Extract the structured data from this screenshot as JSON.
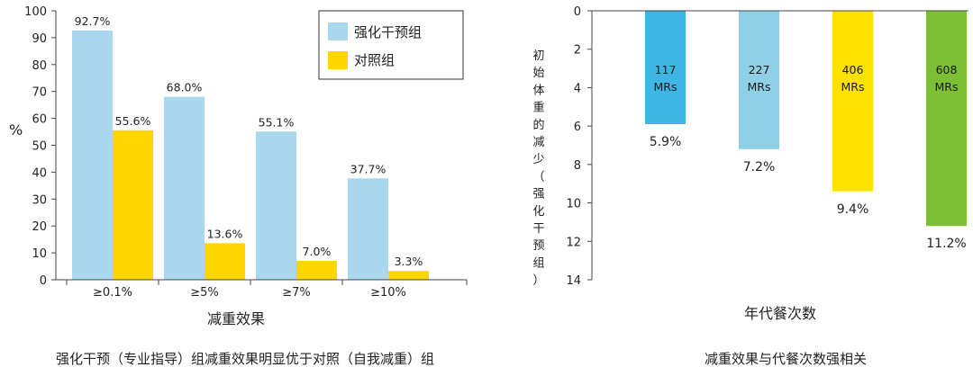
{
  "chart_data": [
    {
      "type": "bar",
      "categories": [
        "≥0.1%",
        "≥5%",
        "≥7%",
        "≥10%"
      ],
      "series": [
        {
          "name": "强化干预组",
          "values": [
            92.7,
            68.0,
            55.1,
            37.7
          ],
          "labels": [
            "92.7%",
            "68.0%",
            "55.1%",
            "37.7%"
          ],
          "color": "#a9d8ee"
        },
        {
          "name": "对照组",
          "values": [
            55.6,
            13.6,
            7.0,
            3.3
          ],
          "labels": [
            "55.6%",
            "13.6%",
            "7.0%",
            "3.3%"
          ],
          "color": "#ffd600"
        }
      ],
      "ylim": [
        0,
        100
      ],
      "yticks": [
        "0",
        "10",
        "20",
        "30",
        "40",
        "50",
        "60",
        "70",
        "80",
        "90",
        "100"
      ],
      "ylabel": "%",
      "xlabel": "减重效果",
      "legend": "top-right",
      "caption": "强化干预（专业指导）组减重效果明显优于对照（自我减重）组"
    },
    {
      "type": "bar",
      "categories": [
        "117 MRs",
        "227 MRs",
        "406 MRs",
        "608 MRs"
      ],
      "bar_text": [
        [
          "117",
          "MRs"
        ],
        [
          "227",
          "MRs"
        ],
        [
          "406",
          "MRs"
        ],
        [
          "608",
          "MRs"
        ]
      ],
      "values": [
        5.9,
        7.2,
        9.4,
        11.2
      ],
      "value_labels": [
        "5.9%",
        "7.2%",
        "9.4%",
        "11.2%"
      ],
      "colors": [
        "#3db6e4",
        "#8fd0e6",
        "#ffe100",
        "#7cc134"
      ],
      "ylim": [
        0,
        14
      ],
      "y_inverted": true,
      "yticks": [
        "0",
        "2",
        "4",
        "6",
        "8",
        "10",
        "12",
        "14"
      ],
      "ylabel": "初始体重的减少（强化干预组）",
      "xlabel": "年代餐次数",
      "caption": "减重效果与代餐次数强相关"
    }
  ]
}
